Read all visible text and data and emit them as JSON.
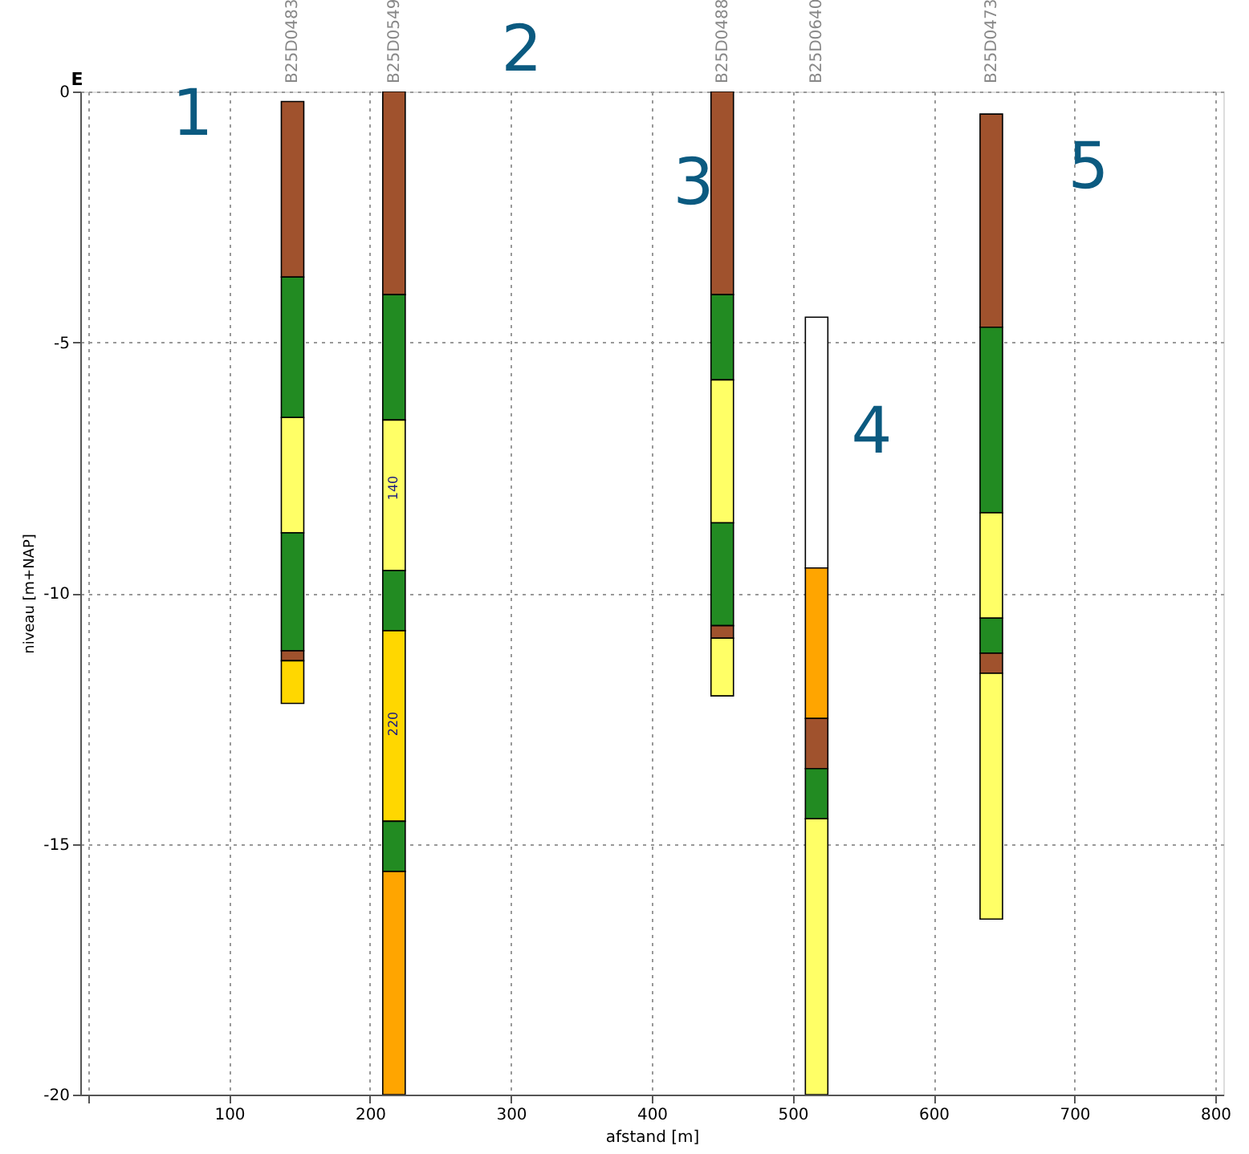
{
  "chart_data": {
    "type": "bar",
    "xlabel": "afstand [m]",
    "ylabel": "niveau [m+NAP]",
    "x": [
      145,
      217,
      450,
      517,
      641
    ],
    "series": [
      {
        "base": [
          -0.2,
          0,
          0,
          -4.5,
          -0.45
        ],
        "values": [
          -3.5,
          -4.05,
          -4.05,
          -5.0,
          -4.25
        ],
        "colors": [
          "#a0522d",
          "#a0522d",
          "#a0522d",
          "#ffffff",
          "#a0522d"
        ]
      },
      {
        "base": [
          -3.7,
          -4.05,
          -4.05,
          -9.5,
          -4.7
        ],
        "values": [
          -2.8,
          -2.5,
          -1.7,
          -3.0,
          -3.7
        ],
        "colors": [
          "#228b22",
          "#228b22",
          "#228b22",
          "#ffa500",
          "#228b22"
        ]
      },
      {
        "base": [
          -6.5,
          -6.55,
          -5.75,
          -12.5,
          -8.4
        ],
        "values": [
          -2.3,
          -3.0,
          -2.85,
          -1.0,
          -2.1
        ],
        "colors": [
          "#ffff66",
          "#ffff66",
          "#ffff66",
          "#a0522d",
          "#ffff66"
        ]
      },
      {
        "base": [
          -8.8,
          -9.55,
          -8.6,
          -13.5,
          -10.5
        ],
        "values": [
          -2.35,
          -1.2,
          -2.05,
          -1.0,
          -0.7
        ],
        "colors": [
          "#228b22",
          "#228b22",
          "#228b22",
          "#228b22",
          "#228b22"
        ]
      },
      {
        "base": [
          -11.15,
          -10.75,
          -10.65,
          -14.5,
          -11.2
        ],
        "values": [
          -0.2,
          -3.8,
          -0.25,
          -5.5,
          -0.4
        ],
        "colors": [
          "#a0522d",
          "#ffd700",
          "#a0522d",
          "#ffff66",
          "#a0522d"
        ]
      },
      {
        "base": [
          -11.35,
          -14.55,
          -10.9,
          null,
          -11.6
        ],
        "values": [
          -0.85,
          -1.0,
          -1.15,
          null,
          -4.9
        ],
        "colors": [
          "#ffd700",
          "#228b22",
          "#ffff66",
          null,
          "#ffff66"
        ]
      },
      {
        "base": [
          null,
          -15.55,
          null,
          null,
          null
        ],
        "values": [
          null,
          -4.45,
          null,
          null,
          null
        ],
        "colors": [
          null,
          "#ffa500",
          null,
          null,
          null
        ]
      }
    ],
    "xlim": [
      0,
      800
    ],
    "xticks": [
      {
        "value": 0,
        "label": null
      },
      100,
      200,
      300,
      400,
      500,
      600,
      700,
      800
    ],
    "ylim": [
      -20,
      0
    ],
    "yticks": [
      -20,
      -15,
      -10,
      -5,
      0
    ],
    "grid": true,
    "annotations": [
      "E",
      "1",
      "2",
      "3",
      "4",
      "5",
      "140",
      "220",
      "B25D0483",
      "B25D0549",
      "B25D0488",
      "B25D0640",
      "B25D0473"
    ]
  }
}
